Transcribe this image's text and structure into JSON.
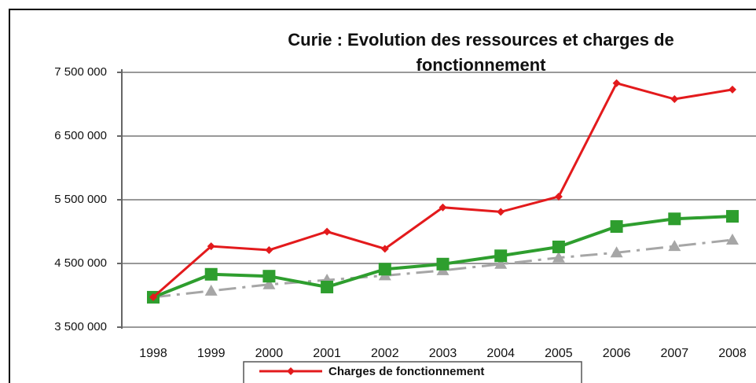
{
  "chart_data": {
    "type": "line",
    "title_lines": [
      "Curie : Evolution des ressources et charges de",
      "fonctionnement"
    ],
    "categories": [
      "1998",
      "1999",
      "2000",
      "2001",
      "2002",
      "2003",
      "2004",
      "2005",
      "2006",
      "2007",
      "2008"
    ],
    "series": [
      {
        "name": "Charges de fonctionnement",
        "color": "#e31a1c",
        "marker": "diamond",
        "dash": "solid",
        "values": [
          3970000,
          4770000,
          4710000,
          5000000,
          4730000,
          5380000,
          5310000,
          5550000,
          7330000,
          7080000,
          7230000
        ]
      },
      {
        "color": "#2e9e2e",
        "marker": "square",
        "dash": "solid",
        "values": [
          3970000,
          4330000,
          4300000,
          4130000,
          4410000,
          4490000,
          4620000,
          4760000,
          5080000,
          5200000,
          5240000
        ]
      },
      {
        "color": "#a6a6a6",
        "marker": "triangle",
        "dash": "dashdot",
        "values": [
          3970000,
          4070000,
          4170000,
          4240000,
          4310000,
          4390000,
          4490000,
          4590000,
          4670000,
          4770000,
          4870000
        ]
      }
    ],
    "ylim": [
      3500000,
      7500000
    ],
    "yticks": [
      {
        "value": 3500000,
        "label": "3 500 000"
      },
      {
        "value": 4500000,
        "label": "4 500 000"
      },
      {
        "value": 5500000,
        "label": "5 500 000"
      },
      {
        "value": 6500000,
        "label": "6 500 000"
      },
      {
        "value": 7500000,
        "label": "7 500 000"
      }
    ],
    "grid": true,
    "legend": "bottom"
  }
}
